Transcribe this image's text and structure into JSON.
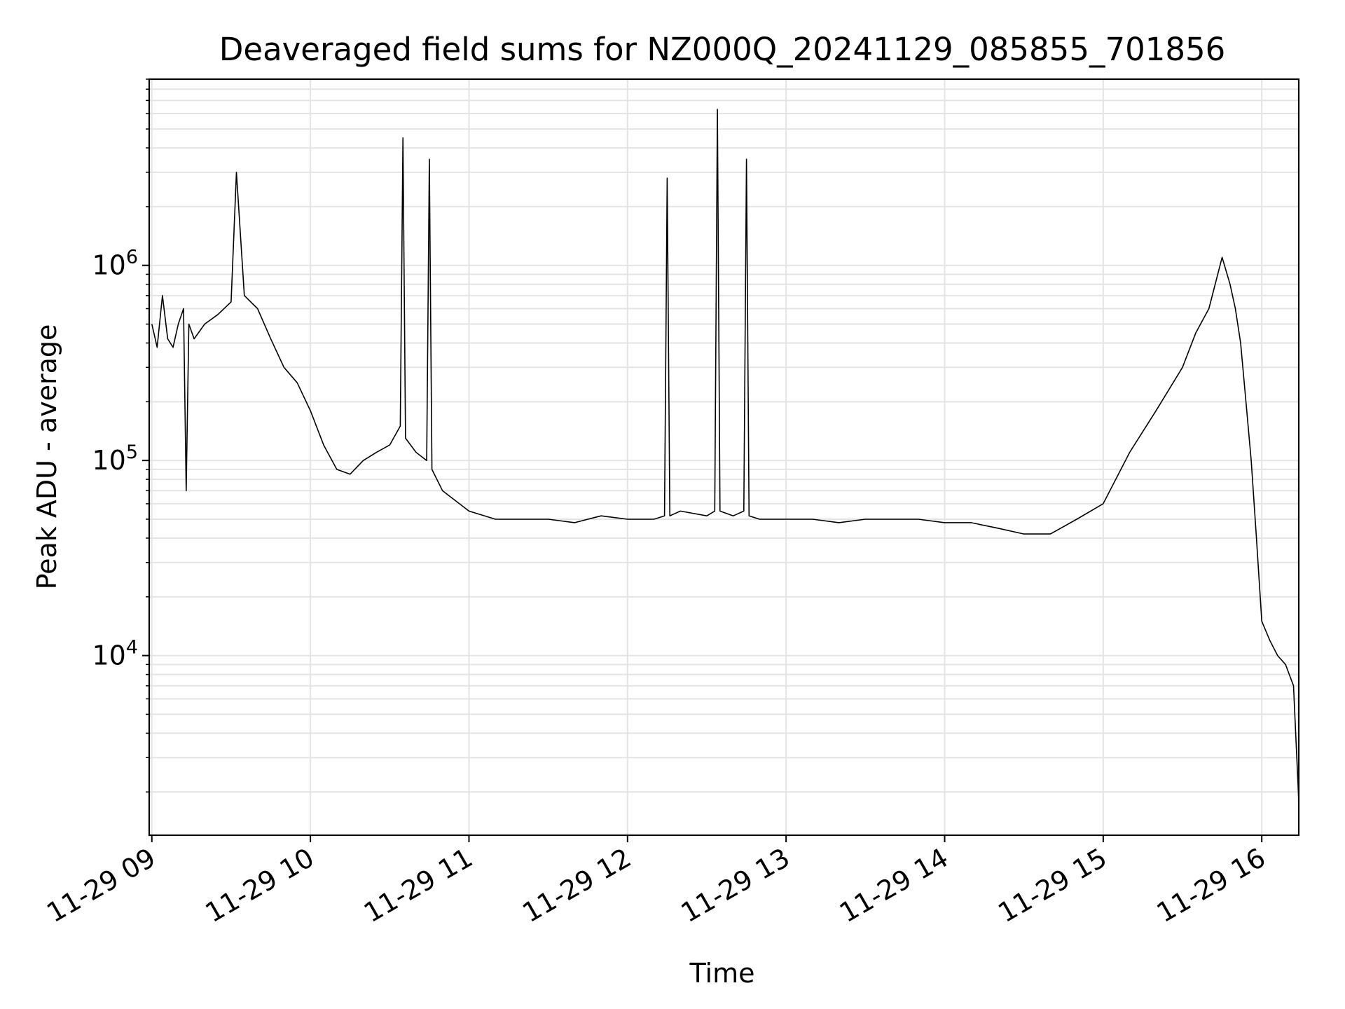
{
  "chart_data": {
    "type": "line",
    "title": "Deaveraged field sums for NZ000Q_20241129_085855_701856",
    "xlabel": "Time",
    "ylabel": "Peak ADU - average",
    "yscale": "log",
    "ylim": [
      1200,
      9000000
    ],
    "xlim": [
      "2024-11-29 08:59",
      "2024-11-29 16:14"
    ],
    "grid": true,
    "line_color": "#000000",
    "x_ticks": [
      "2024-11-29 09:00",
      "2024-11-29 10:00",
      "2024-11-29 11:00",
      "2024-11-29 12:00",
      "2024-11-29 13:00",
      "2024-11-29 14:00",
      "2024-11-29 15:00",
      "2024-11-29 16:00"
    ],
    "x_tick_labels": [
      "11-29 09",
      "11-29 10",
      "11-29 11",
      "11-29 12",
      "11-29 13",
      "11-29 14",
      "11-29 15",
      "11-29 16"
    ],
    "y_ticks": [
      10000,
      100000,
      1000000
    ],
    "y_tick_labels": [
      {
        "base": "10",
        "exp": "4"
      },
      {
        "base": "10",
        "exp": "5"
      },
      {
        "base": "10",
        "exp": "6"
      }
    ],
    "series": [
      {
        "x": [
          "2024-11-29 09:00",
          "2024-11-29 09:02",
          "2024-11-29 09:04",
          "2024-11-29 09:06",
          "2024-11-29 09:08",
          "2024-11-29 09:10",
          "2024-11-29 09:12",
          "2024-11-29 09:13",
          "2024-11-29 09:14",
          "2024-11-29 09:16",
          "2024-11-29 09:20",
          "2024-11-29 09:25",
          "2024-11-29 09:30",
          "2024-11-29 09:32",
          "2024-11-29 09:35",
          "2024-11-29 09:40",
          "2024-11-29 09:45",
          "2024-11-29 09:50",
          "2024-11-29 09:55",
          "2024-11-29 10:00",
          "2024-11-29 10:05",
          "2024-11-29 10:10",
          "2024-11-29 10:15",
          "2024-11-29 10:20",
          "2024-11-29 10:25",
          "2024-11-29 10:30",
          "2024-11-29 10:34",
          "2024-11-29 10:35",
          "2024-11-29 10:36",
          "2024-11-29 10:40",
          "2024-11-29 10:44",
          "2024-11-29 10:45",
          "2024-11-29 10:46",
          "2024-11-29 10:50",
          "2024-11-29 11:00",
          "2024-11-29 11:10",
          "2024-11-29 11:20",
          "2024-11-29 11:30",
          "2024-11-29 11:40",
          "2024-11-29 11:50",
          "2024-11-29 12:00",
          "2024-11-29 12:10",
          "2024-11-29 12:14",
          "2024-11-29 12:15",
          "2024-11-29 12:16",
          "2024-11-29 12:20",
          "2024-11-29 12:30",
          "2024-11-29 12:33",
          "2024-11-29 12:34",
          "2024-11-29 12:35",
          "2024-11-29 12:40",
          "2024-11-29 12:44",
          "2024-11-29 12:45",
          "2024-11-29 12:46",
          "2024-11-29 12:50",
          "2024-11-29 13:00",
          "2024-11-29 13:10",
          "2024-11-29 13:20",
          "2024-11-29 13:30",
          "2024-11-29 13:40",
          "2024-11-29 13:50",
          "2024-11-29 14:00",
          "2024-11-29 14:10",
          "2024-11-29 14:20",
          "2024-11-29 14:30",
          "2024-11-29 14:40",
          "2024-11-29 14:50",
          "2024-11-29 15:00",
          "2024-11-29 15:10",
          "2024-11-29 15:20",
          "2024-11-29 15:30",
          "2024-11-29 15:35",
          "2024-11-29 15:40",
          "2024-11-29 15:45",
          "2024-11-29 15:48",
          "2024-11-29 15:50",
          "2024-11-29 15:52",
          "2024-11-29 15:54",
          "2024-11-29 15:56",
          "2024-11-29 15:58",
          "2024-11-29 16:00",
          "2024-11-29 16:03",
          "2024-11-29 16:06",
          "2024-11-29 16:09",
          "2024-11-29 16:12",
          "2024-11-29 16:14"
        ],
        "y": [
          500000,
          380000,
          700000,
          420000,
          380000,
          500000,
          600000,
          70000,
          500000,
          420000,
          500000,
          560000,
          650000,
          3000000,
          700000,
          600000,
          420000,
          300000,
          250000,
          180000,
          120000,
          90000,
          85000,
          100000,
          110000,
          120000,
          150000,
          4500000,
          130000,
          110000,
          100000,
          3500000,
          90000,
          70000,
          55000,
          50000,
          50000,
          50000,
          48000,
          52000,
          50000,
          50000,
          52000,
          2800000,
          52000,
          55000,
          52000,
          55000,
          6300000,
          55000,
          52000,
          55000,
          3500000,
          52000,
          50000,
          50000,
          50000,
          48000,
          50000,
          50000,
          50000,
          48000,
          48000,
          45000,
          42000,
          42000,
          50000,
          60000,
          110000,
          180000,
          300000,
          450000,
          600000,
          1100000,
          800000,
          600000,
          400000,
          200000,
          100000,
          40000,
          15000,
          12000,
          10000,
          9000,
          7000,
          1800
        ]
      }
    ]
  }
}
